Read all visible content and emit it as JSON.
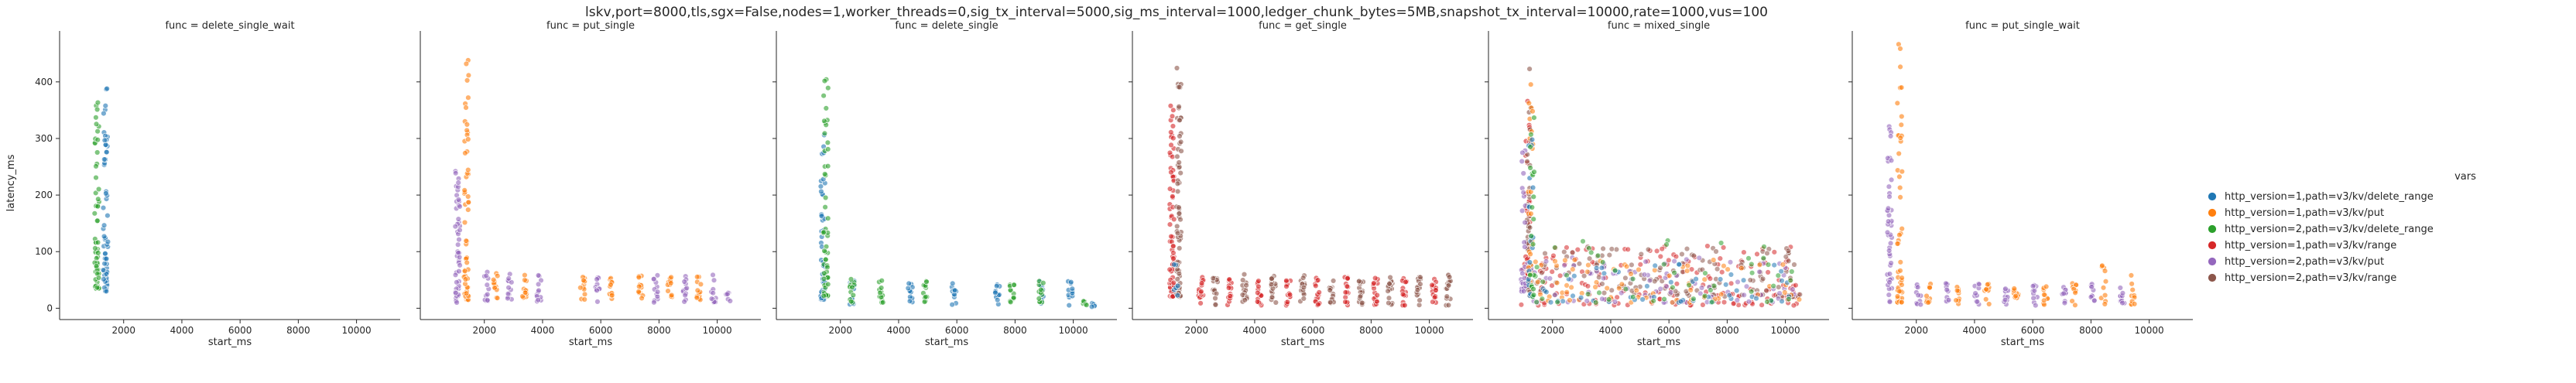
{
  "figure": {
    "suptitle": "lskv,port=8000,tls,sgx=False,nodes=1,worker_threads=0,sig_tx_interval=5000,sig_ms_interval=1000,ledger_chunk_bytes=5MB,snapshot_tx_interval=10000,rate=1000,vus=100"
  },
  "legend": {
    "title": "vars",
    "entries": [
      {
        "label": "http_version=1,path=v3/kv/delete_range",
        "color": "#1f77b4"
      },
      {
        "label": "http_version=1,path=v3/kv/put",
        "color": "#ff7f0e"
      },
      {
        "label": "http_version=2,path=v3/kv/delete_range",
        "color": "#2ca02c"
      },
      {
        "label": "http_version=1,path=v3/kv/range",
        "color": "#d62728"
      },
      {
        "label": "http_version=2,path=v3/kv/put",
        "color": "#9467bd"
      },
      {
        "label": "http_version=2,path=v3/kv/range",
        "color": "#8c564b"
      }
    ]
  },
  "chart_data": {
    "type": "scatter",
    "xlabel": "start_ms",
    "ylabel": "latency_ms",
    "xticks": [
      2000,
      4000,
      6000,
      8000,
      10000
    ],
    "yticks": [
      0,
      100,
      200,
      300,
      400
    ],
    "xlim": [
      -200,
      11500
    ],
    "ylim": [
      -20,
      490
    ],
    "panels": [
      {
        "title": "func = delete_single_wait",
        "series": [
          {
            "name": "http_version=1,path=v3/kv/delete_range",
            "color": "#1f77b4",
            "clusters": [
              {
                "x": 1380,
                "ymin": 30,
                "ymax": 390,
                "n": 60,
                "skew": 2.0
              }
            ]
          },
          {
            "name": "http_version=2,path=v3/kv/delete_range",
            "color": "#2ca02c",
            "clusters": [
              {
                "x": 1080,
                "ymin": 35,
                "ymax": 370,
                "n": 60,
                "skew": 2.2
              }
            ]
          }
        ]
      },
      {
        "title": "func = put_single",
        "series": [
          {
            "name": "http_version=2,path=v3/kv/put",
            "color": "#9467bd",
            "clusters": [
              {
                "x": 1080,
                "ymin": 10,
                "ymax": 245,
                "n": 50,
                "skew": 1.4
              },
              {
                "x": 2080,
                "ymin": 10,
                "ymax": 65,
                "n": 12,
                "skew": 1
              },
              {
                "x": 2880,
                "ymin": 10,
                "ymax": 65,
                "n": 12,
                "skew": 1
              },
              {
                "x": 3880,
                "ymin": 10,
                "ymax": 60,
                "n": 12,
                "skew": 1
              },
              {
                "x": 5880,
                "ymin": 10,
                "ymax": 60,
                "n": 12,
                "skew": 1
              },
              {
                "x": 7880,
                "ymin": 10,
                "ymax": 60,
                "n": 12,
                "skew": 1
              },
              {
                "x": 8880,
                "ymin": 10,
                "ymax": 60,
                "n": 12,
                "skew": 1
              },
              {
                "x": 9880,
                "ymin": 10,
                "ymax": 60,
                "n": 12,
                "skew": 1
              },
              {
                "x": 10380,
                "ymin": 5,
                "ymax": 30,
                "n": 6,
                "skew": 1
              }
            ]
          },
          {
            "name": "http_version=1,path=v3/kv/put",
            "color": "#ff7f0e",
            "clusters": [
              {
                "x": 1380,
                "ymin": 15,
                "ymax": 440,
                "n": 55,
                "skew": 2.0
              },
              {
                "x": 2380,
                "ymin": 15,
                "ymax": 70,
                "n": 12,
                "skew": 1
              },
              {
                "x": 3380,
                "ymin": 15,
                "ymax": 60,
                "n": 12,
                "skew": 1
              },
              {
                "x": 5380,
                "ymin": 15,
                "ymax": 60,
                "n": 12,
                "skew": 1
              },
              {
                "x": 6380,
                "ymin": 15,
                "ymax": 60,
                "n": 12,
                "skew": 1
              },
              {
                "x": 7380,
                "ymin": 15,
                "ymax": 60,
                "n": 12,
                "skew": 1
              },
              {
                "x": 8380,
                "ymin": 15,
                "ymax": 60,
                "n": 12,
                "skew": 1
              },
              {
                "x": 9380,
                "ymin": 15,
                "ymax": 70,
                "n": 12,
                "skew": 1
              }
            ]
          }
        ]
      },
      {
        "title": "func = delete_single",
        "series": [
          {
            "name": "http_version=1,path=v3/kv/delete_range",
            "color": "#1f77b4",
            "clusters": [
              {
                "x": 1400,
                "ymin": 15,
                "ymax": 330,
                "n": 45,
                "skew": 1.8
              },
              {
                "x": 2400,
                "ymin": 5,
                "ymax": 50,
                "n": 12,
                "skew": 1
              },
              {
                "x": 4400,
                "ymin": 5,
                "ymax": 45,
                "n": 12,
                "skew": 1
              },
              {
                "x": 5900,
                "ymin": 5,
                "ymax": 45,
                "n": 12,
                "skew": 1
              },
              {
                "x": 7400,
                "ymin": 5,
                "ymax": 45,
                "n": 12,
                "skew": 1
              },
              {
                "x": 8900,
                "ymin": 5,
                "ymax": 50,
                "n": 12,
                "skew": 1
              },
              {
                "x": 9900,
                "ymin": 5,
                "ymax": 55,
                "n": 12,
                "skew": 1
              },
              {
                "x": 10700,
                "ymin": 2,
                "ymax": 10,
                "n": 5,
                "skew": 1
              }
            ]
          },
          {
            "name": "http_version=2,path=v3/kv/delete_range",
            "color": "#2ca02c",
            "clusters": [
              {
                "x": 1500,
                "ymin": 20,
                "ymax": 435,
                "n": 55,
                "skew": 2.0
              },
              {
                "x": 2400,
                "ymin": 10,
                "ymax": 55,
                "n": 12,
                "skew": 1
              },
              {
                "x": 3400,
                "ymin": 10,
                "ymax": 50,
                "n": 12,
                "skew": 1
              },
              {
                "x": 4900,
                "ymin": 10,
                "ymax": 50,
                "n": 12,
                "skew": 1
              },
              {
                "x": 7900,
                "ymin": 10,
                "ymax": 50,
                "n": 12,
                "skew": 1
              },
              {
                "x": 8900,
                "ymin": 10,
                "ymax": 50,
                "n": 12,
                "skew": 1
              },
              {
                "x": 10400,
                "ymin": 5,
                "ymax": 20,
                "n": 6,
                "skew": 1
              }
            ]
          }
        ]
      },
      {
        "title": "func = get_single",
        "series": [
          {
            "name": "http_version=1,path=v3/kv/range",
            "color": "#d62728",
            "clusters": [
              {
                "x": 1150,
                "ymin": 20,
                "ymax": 360,
                "n": 70,
                "skew": 1.6
              },
              {
                "x": 2150,
                "ymin": 5,
                "ymax": 60,
                "n": 16,
                "skew": 1
              },
              {
                "x": 3150,
                "ymin": 5,
                "ymax": 55,
                "n": 16,
                "skew": 1
              },
              {
                "x": 4150,
                "ymin": 5,
                "ymax": 55,
                "n": 16,
                "skew": 1
              },
              {
                "x": 5150,
                "ymin": 5,
                "ymax": 55,
                "n": 16,
                "skew": 1
              },
              {
                "x": 6150,
                "ymin": 5,
                "ymax": 55,
                "n": 16,
                "skew": 1
              },
              {
                "x": 7150,
                "ymin": 5,
                "ymax": 55,
                "n": 16,
                "skew": 1
              },
              {
                "x": 8150,
                "ymin": 5,
                "ymax": 55,
                "n": 16,
                "skew": 1
              },
              {
                "x": 9150,
                "ymin": 5,
                "ymax": 55,
                "n": 16,
                "skew": 1
              },
              {
                "x": 10150,
                "ymin": 5,
                "ymax": 55,
                "n": 16,
                "skew": 1
              }
            ]
          },
          {
            "name": "http_version=2,path=v3/kv/range",
            "color": "#8c564b",
            "clusters": [
              {
                "x": 1400,
                "ymin": 20,
                "ymax": 435,
                "n": 70,
                "skew": 1.8
              },
              {
                "x": 2650,
                "ymin": 5,
                "ymax": 60,
                "n": 16,
                "skew": 1
              },
              {
                "x": 3650,
                "ymin": 5,
                "ymax": 60,
                "n": 16,
                "skew": 1
              },
              {
                "x": 4650,
                "ymin": 5,
                "ymax": 60,
                "n": 16,
                "skew": 1
              },
              {
                "x": 5650,
                "ymin": 5,
                "ymax": 60,
                "n": 16,
                "skew": 1
              },
              {
                "x": 6650,
                "ymin": 5,
                "ymax": 55,
                "n": 16,
                "skew": 1
              },
              {
                "x": 7650,
                "ymin": 5,
                "ymax": 55,
                "n": 16,
                "skew": 1
              },
              {
                "x": 8650,
                "ymin": 5,
                "ymax": 55,
                "n": 16,
                "skew": 1
              },
              {
                "x": 9650,
                "ymin": 5,
                "ymax": 55,
                "n": 16,
                "skew": 1
              },
              {
                "x": 10650,
                "ymin": 5,
                "ymax": 60,
                "n": 16,
                "skew": 1
              }
            ]
          },
          {
            "name": "http_version=1,path=v3/kv/delete_range",
            "color": "#1f77b4",
            "clusters": [
              {
                "x": 1300,
                "ymin": 10,
                "ymax": 80,
                "n": 6,
                "skew": 1
              }
            ]
          }
        ]
      },
      {
        "title": "func = mixed_single",
        "series": [
          {
            "name": "http_version=1,path=v3/kv/range",
            "color": "#d62728",
            "bands": [
              {
                "x0": 900,
                "x1": 10500,
                "ymin": 5,
                "ymax": 110,
                "n": 160
              }
            ],
            "clusters": [
              {
                "x": 1150,
                "ymin": 30,
                "ymax": 380,
                "n": 40,
                "skew": 1.8
              }
            ]
          },
          {
            "name": "http_version=2,path=v3/kv/range",
            "color": "#8c564b",
            "bands": [
              {
                "x0": 1400,
                "x1": 10500,
                "ymin": 20,
                "ymax": 110,
                "n": 130
              }
            ],
            "clusters": [
              {
                "x": 1200,
                "ymin": 30,
                "ymax": 440,
                "n": 40,
                "skew": 1.8
              }
            ]
          },
          {
            "name": "http_version=2,path=v3/kv/put",
            "color": "#9467bd",
            "bands": [
              {
                "x0": 900,
                "x1": 10500,
                "ymin": 10,
                "ymax": 90,
                "n": 90
              }
            ],
            "clusters": [
              {
                "x": 1000,
                "ymin": 20,
                "ymax": 280,
                "n": 25,
                "skew": 1.6
              }
            ]
          },
          {
            "name": "http_version=1,path=v3/kv/put",
            "color": "#ff7f0e",
            "bands": [
              {
                "x0": 900,
                "x1": 10500,
                "ymin": 10,
                "ymax": 90,
                "n": 70
              }
            ],
            "clusters": [
              {
                "x": 1250,
                "ymin": 20,
                "ymax": 400,
                "n": 25,
                "skew": 1.8
              }
            ]
          },
          {
            "name": "http_version=1,path=v3/kv/delete_range",
            "color": "#1f77b4",
            "bands": [
              {
                "x0": 900,
                "x1": 10500,
                "ymin": 10,
                "ymax": 80,
                "n": 50
              }
            ],
            "clusters": [
              {
                "x": 1250,
                "ymin": 20,
                "ymax": 300,
                "n": 20,
                "skew": 1.8
              }
            ]
          },
          {
            "name": "http_version=2,path=v3/kv/delete_range",
            "color": "#2ca02c",
            "bands": [
              {
                "x0": 900,
                "x1": 10500,
                "ymin": 10,
                "ymax": 120,
                "n": 50
              }
            ],
            "clusters": [
              {
                "x": 1300,
                "ymin": 20,
                "ymax": 340,
                "n": 20,
                "skew": 1.8
              }
            ]
          }
        ]
      },
      {
        "title": "func = put_single_wait",
        "series": [
          {
            "name": "http_version=2,path=v3/kv/put",
            "color": "#9467bd",
            "clusters": [
              {
                "x": 1080,
                "ymin": 10,
                "ymax": 330,
                "n": 45,
                "skew": 1.6
              },
              {
                "x": 2080,
                "ymin": 5,
                "ymax": 45,
                "n": 10,
                "skew": 1
              },
              {
                "x": 3080,
                "ymin": 5,
                "ymax": 45,
                "n": 10,
                "skew": 1
              },
              {
                "x": 4080,
                "ymin": 5,
                "ymax": 45,
                "n": 10,
                "skew": 1
              },
              {
                "x": 5080,
                "ymin": 5,
                "ymax": 45,
                "n": 10,
                "skew": 1
              },
              {
                "x": 6080,
                "ymin": 5,
                "ymax": 45,
                "n": 10,
                "skew": 1
              },
              {
                "x": 7080,
                "ymin": 5,
                "ymax": 45,
                "n": 10,
                "skew": 1
              },
              {
                "x": 8080,
                "ymin": 5,
                "ymax": 45,
                "n": 10,
                "skew": 1
              },
              {
                "x": 9080,
                "ymin": 5,
                "ymax": 45,
                "n": 10,
                "skew": 1
              }
            ]
          },
          {
            "name": "http_version=1,path=v3/kv/put",
            "color": "#ff7f0e",
            "clusters": [
              {
                "x": 1430,
                "ymin": 10,
                "ymax": 470,
                "n": 50,
                "skew": 2.0
              },
              {
                "x": 2430,
                "ymin": 5,
                "ymax": 45,
                "n": 10,
                "skew": 1
              },
              {
                "x": 3430,
                "ymin": 5,
                "ymax": 45,
                "n": 10,
                "skew": 1
              },
              {
                "x": 4430,
                "ymin": 5,
                "ymax": 45,
                "n": 10,
                "skew": 1
              },
              {
                "x": 5430,
                "ymin": 5,
                "ymax": 45,
                "n": 10,
                "skew": 1
              },
              {
                "x": 6430,
                "ymin": 5,
                "ymax": 45,
                "n": 10,
                "skew": 1
              },
              {
                "x": 7430,
                "ymin": 5,
                "ymax": 45,
                "n": 10,
                "skew": 1
              },
              {
                "x": 8430,
                "ymin": 5,
                "ymax": 80,
                "n": 10,
                "skew": 1
              },
              {
                "x": 9430,
                "ymin": 5,
                "ymax": 60,
                "n": 10,
                "skew": 1
              }
            ]
          }
        ]
      }
    ]
  }
}
